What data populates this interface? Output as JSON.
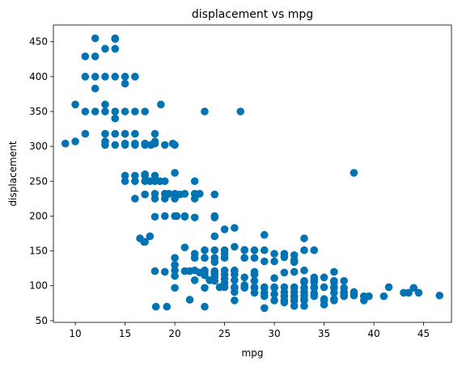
{
  "chart_data": {
    "type": "scatter",
    "title": "displacement vs mpg",
    "xlabel": "mpg",
    "ylabel": "displacement",
    "xlim": [
      7.8,
      47.8
    ],
    "ylim": [
      47.5,
      474
    ],
    "xticks": [
      10,
      15,
      20,
      25,
      30,
      35,
      40,
      45
    ],
    "yticks": [
      50,
      100,
      150,
      200,
      250,
      300,
      350,
      400,
      450
    ],
    "grid": false,
    "marker_color": "#0173b2",
    "series": [
      {
        "points": [
          [
            9,
            304
          ],
          [
            10,
            307
          ],
          [
            10,
            360
          ],
          [
            11,
            318
          ],
          [
            11,
            350
          ],
          [
            11,
            400
          ],
          [
            11,
            429
          ],
          [
            12,
            350
          ],
          [
            12,
            383
          ],
          [
            12,
            400
          ],
          [
            12,
            429
          ],
          [
            12,
            455
          ],
          [
            13,
            302
          ],
          [
            13,
            307
          ],
          [
            13,
            318
          ],
          [
            13,
            350
          ],
          [
            13,
            360
          ],
          [
            13,
            400
          ],
          [
            13,
            440
          ],
          [
            14,
            302
          ],
          [
            14,
            318
          ],
          [
            14,
            340
          ],
          [
            14,
            350
          ],
          [
            14,
            400
          ],
          [
            14,
            440
          ],
          [
            14,
            455
          ],
          [
            14,
            454
          ],
          [
            15,
            250
          ],
          [
            15,
            258
          ],
          [
            15,
            302
          ],
          [
            15,
            304
          ],
          [
            15,
            318
          ],
          [
            15,
            350
          ],
          [
            15,
            390
          ],
          [
            15,
            400
          ],
          [
            16,
            225
          ],
          [
            16,
            250
          ],
          [
            16,
            258
          ],
          [
            16,
            302
          ],
          [
            16,
            304
          ],
          [
            16,
            318
          ],
          [
            16,
            350
          ],
          [
            16,
            400
          ],
          [
            16.5,
            168
          ],
          [
            16.9,
            163
          ],
          [
            17,
            163
          ],
          [
            17,
            231
          ],
          [
            17,
            250
          ],
          [
            17,
            258
          ],
          [
            17,
            260
          ],
          [
            17,
            302
          ],
          [
            17,
            304
          ],
          [
            17,
            350
          ],
          [
            17.5,
            171
          ],
          [
            17.5,
            250
          ],
          [
            17.6,
            302
          ],
          [
            18,
            121
          ],
          [
            18,
            199
          ],
          [
            18,
            225
          ],
          [
            18,
            232
          ],
          [
            18,
            250
          ],
          [
            18,
            258
          ],
          [
            18,
            304
          ],
          [
            18,
            307
          ],
          [
            18,
            318
          ],
          [
            18.1,
            70
          ],
          [
            18.5,
            250
          ],
          [
            18.6,
            360
          ],
          [
            19,
            120
          ],
          [
            19,
            200
          ],
          [
            19,
            225
          ],
          [
            19,
            232
          ],
          [
            19,
            250
          ],
          [
            19,
            302
          ],
          [
            19.2,
            70
          ],
          [
            19.4,
            232
          ],
          [
            19.8,
            304
          ],
          [
            20,
            97
          ],
          [
            20,
            114
          ],
          [
            20,
            122
          ],
          [
            20,
            130
          ],
          [
            20,
            140
          ],
          [
            20,
            200
          ],
          [
            20,
            225
          ],
          [
            20,
            232
          ],
          [
            20,
            262
          ],
          [
            20,
            302
          ],
          [
            20.2,
            200
          ],
          [
            20.5,
            231
          ],
          [
            21,
            121
          ],
          [
            21,
            155
          ],
          [
            21,
            199
          ],
          [
            21,
            200
          ],
          [
            21,
            232
          ],
          [
            21.5,
            80
          ],
          [
            21.5,
            121
          ],
          [
            22,
            108
          ],
          [
            22,
            122
          ],
          [
            22,
            140
          ],
          [
            22,
            146
          ],
          [
            22,
            198
          ],
          [
            22,
            225
          ],
          [
            22,
            232
          ],
          [
            22,
            250
          ],
          [
            22.5,
            119
          ],
          [
            22.5,
            232
          ],
          [
            23,
            70
          ],
          [
            23,
            97
          ],
          [
            23,
            115
          ],
          [
            23,
            120
          ],
          [
            23,
            122
          ],
          [
            23,
            140
          ],
          [
            23,
            151
          ],
          [
            23,
            350
          ],
          [
            23.5,
            108
          ],
          [
            24,
            107
          ],
          [
            24,
            113
          ],
          [
            24,
            116
          ],
          [
            24,
            119
          ],
          [
            24,
            121
          ],
          [
            24,
            134
          ],
          [
            24,
            140
          ],
          [
            24,
            151
          ],
          [
            24,
            171
          ],
          [
            24,
            198
          ],
          [
            24,
            200
          ],
          [
            24,
            231
          ],
          [
            24.5,
            98
          ],
          [
            25,
            98
          ],
          [
            25,
            104
          ],
          [
            25,
            110
          ],
          [
            25,
            116
          ],
          [
            25,
            122
          ],
          [
            25,
            140
          ],
          [
            25,
            146
          ],
          [
            25,
            151
          ],
          [
            25,
            181
          ],
          [
            26,
            79
          ],
          [
            26,
            91
          ],
          [
            26,
            97
          ],
          [
            26,
            98
          ],
          [
            26,
            108
          ],
          [
            26,
            116
          ],
          [
            26,
            121
          ],
          [
            26,
            122
          ],
          [
            26,
            156
          ],
          [
            26,
            183
          ],
          [
            26.6,
            350
          ],
          [
            27,
            97
          ],
          [
            27,
            98
          ],
          [
            27,
            101
          ],
          [
            27,
            112
          ],
          [
            27,
            140
          ],
          [
            27,
            151
          ],
          [
            27,
            151.5
          ],
          [
            28,
            90
          ],
          [
            28,
            97
          ],
          [
            28,
            98
          ],
          [
            28,
            107
          ],
          [
            28,
            116
          ],
          [
            28,
            120
          ],
          [
            28,
            140
          ],
          [
            28,
            151
          ],
          [
            29,
            68
          ],
          [
            29,
            85
          ],
          [
            29,
            90
          ],
          [
            29,
            97
          ],
          [
            29,
            98
          ],
          [
            29,
            135
          ],
          [
            29,
            151
          ],
          [
            29,
            173
          ],
          [
            30,
            79
          ],
          [
            30,
            88
          ],
          [
            30,
            97
          ],
          [
            30,
            98
          ],
          [
            30,
            111
          ],
          [
            30,
            135
          ],
          [
            30,
            146
          ],
          [
            31,
            76
          ],
          [
            31,
            79
          ],
          [
            31,
            85
          ],
          [
            31,
            91
          ],
          [
            31,
            98
          ],
          [
            31,
            119
          ],
          [
            31,
            141
          ],
          [
            31,
            146
          ],
          [
            32,
            71
          ],
          [
            32,
            78
          ],
          [
            32,
            83
          ],
          [
            32,
            85
          ],
          [
            32,
            91
          ],
          [
            32,
            97
          ],
          [
            32,
            98
          ],
          [
            32,
            120
          ],
          [
            32,
            134
          ],
          [
            32,
            135
          ],
          [
            32,
            137
          ],
          [
            32,
            144
          ],
          [
            33,
            71
          ],
          [
            33,
            79
          ],
          [
            33,
            81
          ],
          [
            33,
            86
          ],
          [
            33,
            91
          ],
          [
            33,
            97
          ],
          [
            33,
            105
          ],
          [
            33,
            107
          ],
          [
            33,
            122
          ],
          [
            33,
            151
          ],
          [
            33,
            168
          ],
          [
            34,
            85
          ],
          [
            34,
            89
          ],
          [
            34,
            97
          ],
          [
            34,
            98
          ],
          [
            34,
            105
          ],
          [
            34,
            108
          ],
          [
            34,
            112
          ],
          [
            34,
            151
          ],
          [
            35,
            73
          ],
          [
            35,
            79
          ],
          [
            35,
            81
          ],
          [
            35,
            98
          ],
          [
            35,
            112
          ],
          [
            36,
            79
          ],
          [
            36,
            81
          ],
          [
            36,
            90
          ],
          [
            36,
            97
          ],
          [
            36,
            98
          ],
          [
            36,
            105
          ],
          [
            36,
            107
          ],
          [
            36,
            120
          ],
          [
            37,
            85
          ],
          [
            37,
            89
          ],
          [
            37,
            91
          ],
          [
            37,
            97
          ],
          [
            37,
            107
          ],
          [
            38,
            86
          ],
          [
            38,
            89
          ],
          [
            38,
            91
          ],
          [
            38,
            262
          ],
          [
            39,
            79
          ],
          [
            39,
            85
          ],
          [
            39.5,
            85
          ],
          [
            41,
            85
          ],
          [
            41.5,
            98
          ],
          [
            43,
            90
          ],
          [
            43.5,
            90
          ],
          [
            44,
            97
          ],
          [
            44.5,
            90
          ],
          [
            46.6,
            86
          ]
        ]
      }
    ]
  }
}
